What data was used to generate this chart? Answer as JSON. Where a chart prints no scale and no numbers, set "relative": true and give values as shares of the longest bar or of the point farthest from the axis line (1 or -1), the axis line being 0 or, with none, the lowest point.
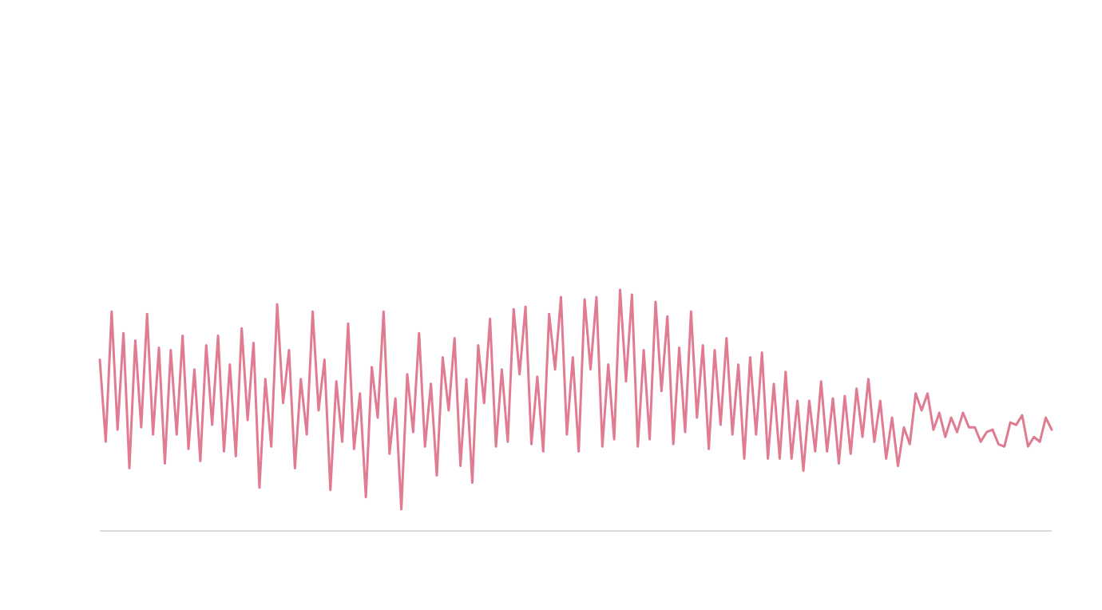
{
  "chart_data": {
    "type": "line",
    "relative": true,
    "marker": "none",
    "line_style": "solid",
    "categories": [
      null,
      null,
      null,
      null,
      null,
      null,
      null,
      null,
      null,
      null,
      null,
      null,
      null,
      null,
      null,
      null,
      null,
      null,
      null,
      null,
      null,
      null,
      null,
      null,
      null,
      null,
      null,
      null,
      null,
      null,
      null,
      null,
      null,
      null,
      null,
      null,
      null,
      null,
      null,
      null,
      null,
      null,
      null,
      null,
      null,
      null,
      null,
      null,
      null,
      null,
      null,
      null,
      null,
      null,
      null,
      null,
      null,
      null,
      null,
      null,
      null,
      null,
      null,
      null,
      null,
      null,
      null,
      null,
      null,
      null,
      null,
      null,
      null,
      null,
      null,
      null,
      null,
      null,
      null,
      null,
      null,
      null,
      null,
      null,
      null,
      null,
      null,
      null,
      null,
      null,
      null,
      null,
      null,
      null,
      null,
      null,
      null,
      null,
      null,
      null,
      null,
      null,
      null,
      null,
      null,
      null,
      null,
      null,
      null,
      null,
      null,
      null,
      null,
      null,
      null,
      null,
      null,
      null,
      null,
      null,
      null,
      null,
      null,
      null,
      null,
      null,
      null,
      null,
      null,
      null,
      null,
      null,
      null,
      null,
      null,
      null,
      null,
      null,
      null,
      null,
      null,
      null,
      null,
      null,
      null,
      null,
      null,
      null,
      null,
      null,
      null,
      null,
      null,
      null,
      null,
      null,
      null,
      null,
      null,
      null,
      null,
      null
    ],
    "series": [
      {
        "color": "#e07b91",
        "values": [
          0.71,
          0.37,
          0.91,
          0.42,
          0.82,
          0.26,
          0.79,
          0.43,
          0.9,
          0.4,
          0.76,
          0.28,
          0.75,
          0.4,
          0.81,
          0.34,
          0.67,
          0.29,
          0.77,
          0.44,
          0.81,
          0.33,
          0.69,
          0.31,
          0.84,
          0.46,
          0.78,
          0.18,
          0.63,
          0.35,
          0.94,
          0.53,
          0.75,
          0.26,
          0.63,
          0.4,
          0.91,
          0.5,
          0.71,
          0.17,
          0.62,
          0.37,
          0.86,
          0.34,
          0.57,
          0.14,
          0.68,
          0.47,
          0.91,
          0.32,
          0.55,
          0.09,
          0.65,
          0.41,
          0.82,
          0.35,
          0.61,
          0.23,
          0.72,
          0.5,
          0.8,
          0.27,
          0.63,
          0.2,
          0.77,
          0.53,
          0.88,
          0.35,
          0.67,
          0.37,
          0.92,
          0.65,
          0.93,
          0.36,
          0.64,
          0.33,
          0.9,
          0.67,
          0.97,
          0.4,
          0.72,
          0.33,
          0.96,
          0.67,
          0.97,
          0.35,
          0.69,
          0.38,
          1,
          0.62,
          0.98,
          0.35,
          0.75,
          0.38,
          0.95,
          0.58,
          0.89,
          0.36,
          0.76,
          0.41,
          0.91,
          0.47,
          0.77,
          0.34,
          0.75,
          0.44,
          0.8,
          0.4,
          0.69,
          0.3,
          0.72,
          0.4,
          0.74,
          0.3,
          0.61,
          0.3,
          0.66,
          0.3,
          0.54,
          0.25,
          0.54,
          0.33,
          0.62,
          0.33,
          0.55,
          0.28,
          0.56,
          0.32,
          0.59,
          0.39,
          0.63,
          0.37,
          0.54,
          0.3,
          0.47,
          0.27,
          0.43,
          0.36,
          0.57,
          0.5,
          0.57,
          0.42,
          0.49,
          0.39,
          0.47,
          0.41,
          0.49,
          0.43,
          0.43,
          0.37,
          0.41,
          0.42,
          0.36,
          0.35,
          0.45,
          0.44,
          0.48,
          0.35,
          0.39,
          0.37,
          0.47,
          0.42
        ]
      }
    ]
  }
}
